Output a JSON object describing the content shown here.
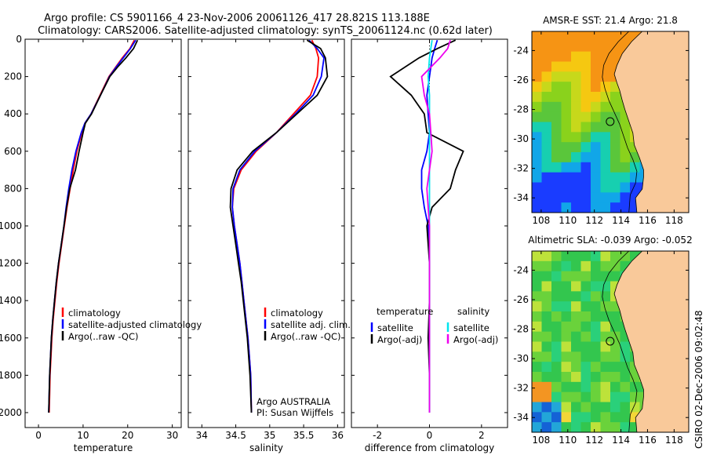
{
  "figure": {
    "title_line1": "Argo profile: CS 5901166_4 23-Nov-2006 20061126_417 28.821S 113.188E",
    "title_line2": "Climatology: CARS2006. Satellite-adjusted climatology: synTS_20061124.nc (0.62d later)",
    "credit": "CSIRO 02-Dec-2006 09:02:48",
    "colors": {
      "climatology": "#ff0000",
      "satellite": "#0000ff",
      "argo": "#000000",
      "sat_salinity": "#00e5ee",
      "argo_salinity": "#ee00ee",
      "land": "#f9c99a"
    }
  },
  "chart_data": [
    {
      "id": "temperature",
      "type": "line",
      "xlabel": "temperature",
      "ylabel": "",
      "xlim": [
        -3,
        32
      ],
      "ylim": [
        2080,
        0
      ],
      "xticks": [
        0,
        10,
        20,
        30
      ],
      "yticks": [
        0,
        200,
        400,
        600,
        800,
        1000,
        1200,
        1400,
        1600,
        1800,
        2000
      ],
      "legend": [
        "climatology",
        "satellite-adjusted climatology",
        "Argo(..raw -QC)"
      ],
      "series": [
        {
          "name": "climatology",
          "color": "#ff0000",
          "x": [
            21.5,
            20.5,
            18.8,
            17.3,
            15.8,
            13.8,
            11.8,
            10.4,
            9.7,
            8.6,
            7.8,
            7.1,
            6.4,
            5.8,
            5.2,
            4.6,
            4.1,
            3.7,
            3.3,
            3.0,
            2.8,
            2.6,
            2.5,
            2.4
          ],
          "y": [
            5,
            50,
            100,
            150,
            200,
            300,
            400,
            450,
            500,
            600,
            700,
            800,
            900,
            1000,
            1100,
            1200,
            1300,
            1400,
            1500,
            1600,
            1700,
            1800,
            1900,
            2000
          ]
        },
        {
          "name": "satellite-adjusted climatology",
          "color": "#0000ff",
          "x": [
            21.8,
            20.6,
            19.0,
            17.4,
            15.9,
            13.9,
            11.8,
            10.4,
            9.6,
            8.4,
            7.5,
            6.8,
            6.2,
            5.7,
            5.1,
            4.5,
            4.0,
            3.6,
            3.2,
            2.9,
            2.7,
            2.5,
            2.4,
            2.3
          ],
          "y": [
            5,
            50,
            100,
            150,
            200,
            300,
            400,
            450,
            500,
            600,
            700,
            800,
            900,
            1000,
            1100,
            1200,
            1300,
            1400,
            1500,
            1600,
            1700,
            1800,
            1900,
            2000
          ]
        },
        {
          "name": "Argo(..raw -QC)",
          "color": "#000000",
          "x": [
            22.2,
            21.3,
            19.6,
            17.7,
            16.0,
            13.9,
            11.9,
            10.5,
            10.0,
            9.1,
            8.3,
            7.0,
            6.3,
            5.7,
            5.1,
            4.5,
            4.0,
            3.6,
            3.2,
            2.9,
            2.7,
            2.5,
            2.4,
            2.3
          ],
          "y": [
            5,
            50,
            100,
            150,
            200,
            300,
            400,
            450,
            500,
            600,
            700,
            800,
            900,
            1000,
            1100,
            1200,
            1300,
            1400,
            1500,
            1600,
            1700,
            1800,
            1900,
            2000
          ]
        }
      ]
    },
    {
      "id": "salinity",
      "type": "line",
      "xlabel": "salinity",
      "ylabel": "",
      "xlim": [
        33.8,
        36.1
      ],
      "ylim": [
        2080,
        0
      ],
      "xticks": [
        34,
        34.5,
        35,
        35.5,
        36
      ],
      "legend": [
        "climatology",
        "satellite adj. clim.",
        "Argo(..raw -QC)"
      ],
      "annotation": [
        "Argo AUSTRALIA",
        "PI: Susan Wijffels"
      ],
      "series": [
        {
          "name": "climatology",
          "color": "#ff0000",
          "x": [
            35.62,
            35.68,
            35.72,
            35.7,
            35.6,
            35.35,
            35.1,
            34.8,
            34.58,
            34.47,
            34.45,
            34.48,
            34.52,
            34.56,
            34.59,
            34.62,
            34.65,
            34.68,
            34.7,
            34.72,
            34.73
          ],
          "y": [
            5,
            50,
            100,
            200,
            300,
            400,
            500,
            600,
            700,
            800,
            900,
            1000,
            1100,
            1200,
            1300,
            1400,
            1500,
            1600,
            1700,
            1800,
            2000
          ]
        },
        {
          "name": "satellite adj. clim.",
          "color": "#0000ff",
          "x": [
            35.58,
            35.7,
            35.8,
            35.76,
            35.64,
            35.38,
            35.1,
            34.78,
            34.56,
            34.46,
            34.45,
            34.48,
            34.52,
            34.56,
            34.59,
            34.62,
            34.65,
            34.68,
            34.7,
            34.72,
            34.73
          ],
          "y": [
            5,
            50,
            100,
            200,
            300,
            400,
            500,
            600,
            700,
            800,
            900,
            1000,
            1100,
            1200,
            1300,
            1400,
            1500,
            1600,
            1700,
            1800,
            2000
          ]
        },
        {
          "name": "Argo(..raw -QC)",
          "color": "#000000",
          "x": [
            35.55,
            35.75,
            35.82,
            35.85,
            35.7,
            35.4,
            35.1,
            34.75,
            34.52,
            34.43,
            34.42,
            34.46,
            34.5,
            34.54,
            34.58,
            34.61,
            34.64,
            34.67,
            34.69,
            34.71,
            34.73
          ],
          "y": [
            5,
            50,
            100,
            200,
            300,
            400,
            500,
            600,
            700,
            800,
            900,
            1000,
            1100,
            1200,
            1300,
            1400,
            1500,
            1600,
            1700,
            1800,
            2000
          ]
        }
      ]
    },
    {
      "id": "difference",
      "type": "line",
      "xlabel": "difference from climatology",
      "ylabel": "",
      "xlim": [
        -3,
        3
      ],
      "ylim": [
        2080,
        0
      ],
      "xticks": [
        -2,
        0,
        2
      ],
      "legend_headers": [
        "temperature",
        "salinity"
      ],
      "legend": [
        "satellite",
        "Argo(-adj)",
        "satellite",
        "Argo(-adj)"
      ],
      "series": [
        {
          "name": "temperature satellite",
          "color": "#0000ff",
          "x": [
            0.3,
            0.2,
            0.1,
            0.0,
            -0.1,
            -0.05,
            0.0,
            -0.1,
            -0.3,
            -0.3,
            -0.2,
            -0.05,
            0.0,
            0.0,
            0.0,
            0.0,
            0.0
          ],
          "y": [
            5,
            50,
            100,
            200,
            300,
            400,
            500,
            600,
            700,
            800,
            900,
            1000,
            1200,
            1400,
            1600,
            1800,
            2000
          ]
        },
        {
          "name": "temperature Argo(-adj)",
          "color": "#000000",
          "x": [
            1.0,
            0.3,
            -0.4,
            -1.5,
            -0.7,
            -0.2,
            -0.1,
            1.3,
            1.0,
            0.8,
            0.1,
            -0.1,
            0.0,
            0.0,
            -0.05,
            0.0,
            0.0
          ],
          "y": [
            5,
            50,
            100,
            200,
            300,
            400,
            500,
            600,
            700,
            800,
            900,
            1000,
            1200,
            1400,
            1600,
            1800,
            2000
          ]
        },
        {
          "name": "salinity satellite",
          "color": "#00e5ee",
          "x": [
            0.1,
            0.05,
            0.0,
            -0.05,
            0.0,
            0.0,
            0.0,
            0.0,
            0.0,
            0.0,
            0.0,
            0.0,
            0.0,
            0.0,
            0.0,
            0.0,
            0.0
          ],
          "y": [
            5,
            50,
            100,
            200,
            300,
            400,
            500,
            600,
            700,
            800,
            900,
            1000,
            1200,
            1400,
            1600,
            1800,
            2000
          ]
        },
        {
          "name": "salinity Argo(-adj)",
          "color": "#ee00ee",
          "x": [
            0.8,
            0.7,
            0.4,
            -0.3,
            -0.2,
            0.0,
            0.05,
            0.1,
            0.0,
            -0.1,
            -0.05,
            0.0,
            0.0,
            0.0,
            0.0,
            0.0,
            0.0
          ],
          "y": [
            5,
            50,
            100,
            200,
            300,
            400,
            500,
            600,
            700,
            800,
            900,
            1000,
            1200,
            1400,
            1600,
            1800,
            2000
          ]
        }
      ]
    },
    {
      "id": "sst_map",
      "type": "heatmap",
      "title": "AMSR-E SST: 21.4 Argo: 21.8",
      "xlim": [
        107.3,
        119.1
      ],
      "ylim": [
        -35,
        -22.7
      ],
      "xticks": [
        108,
        110,
        112,
        114,
        116,
        118
      ],
      "yticks": [
        -24,
        -26,
        -28,
        -30,
        -32,
        -34
      ],
      "profile_location": [
        113.188,
        -28.821
      ]
    },
    {
      "id": "sla_map",
      "type": "heatmap",
      "title": "Altimetric SLA: -0.039 Argo: -0.052",
      "xlim": [
        107.3,
        119.1
      ],
      "ylim": [
        -35,
        -22.7
      ],
      "xticks": [
        108,
        110,
        112,
        114,
        116,
        118
      ],
      "yticks": [
        -24,
        -26,
        -28,
        -30,
        -32,
        -34
      ],
      "profile_location": [
        113.188,
        -28.821
      ]
    }
  ]
}
